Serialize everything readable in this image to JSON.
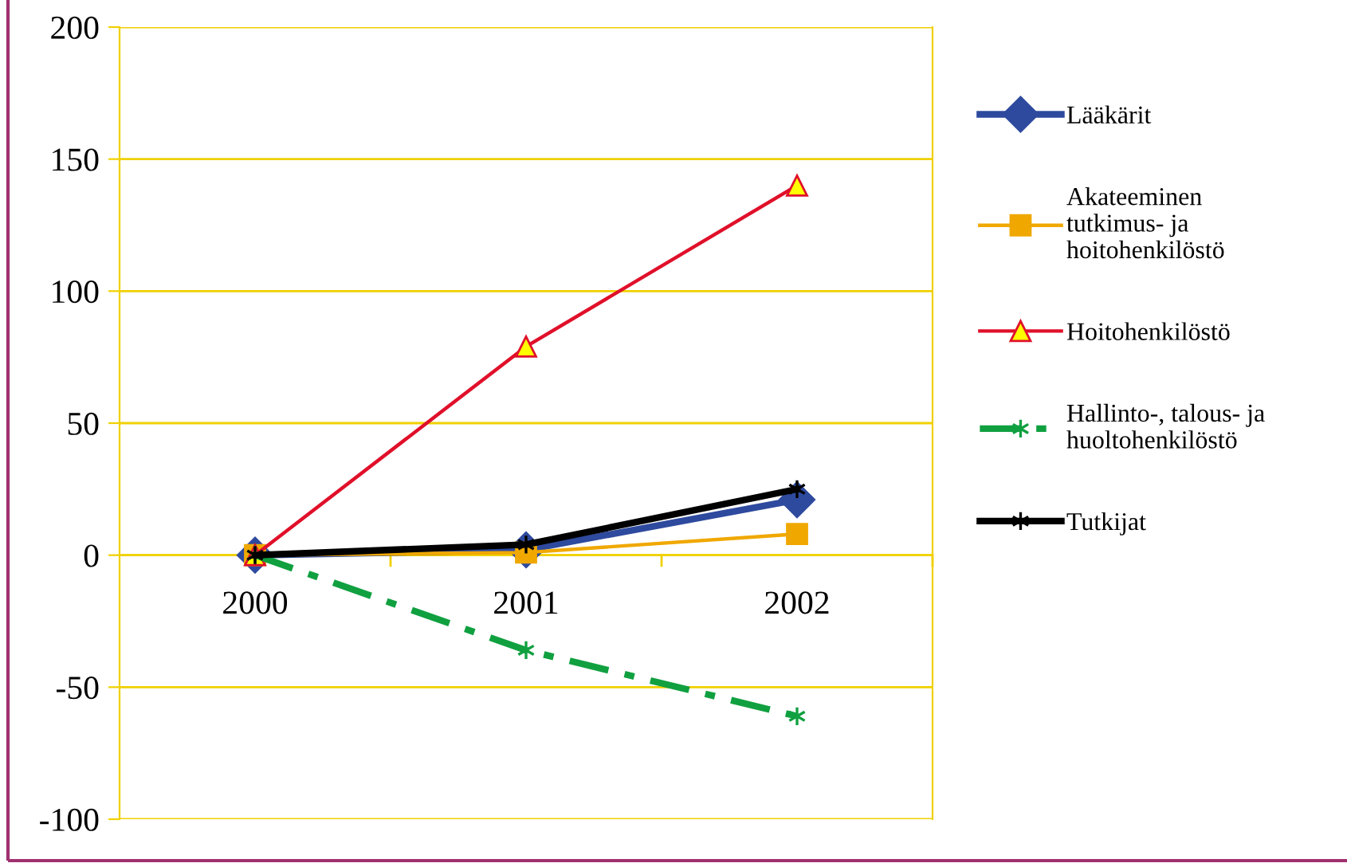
{
  "chart_data": {
    "type": "line",
    "categories": [
      "2000",
      "2001",
      "2002"
    ],
    "series": [
      {
        "name": "Lääkärit",
        "color": "#2e4a9e",
        "values": [
          0,
          2,
          21
        ],
        "marker": "diamond",
        "line_style": "solid"
      },
      {
        "name": "Akateeminen tutkimus- ja hoitohenkilöstö",
        "color": "#f0a800",
        "values": [
          0,
          1,
          8
        ],
        "marker": "square",
        "line_style": "solid"
      },
      {
        "name": "Hoitohenkilöstö",
        "color": "#e0102a",
        "values": [
          0,
          79,
          140
        ],
        "marker": "triangle",
        "line_style": "solid"
      },
      {
        "name": "Hallinto-, talous- ja huoltohenkilöstö",
        "color": "#10a040",
        "values": [
          0,
          -36,
          -61
        ],
        "marker": "cross",
        "line_style": "dashed"
      },
      {
        "name": "Tutkijat",
        "color": "#000000",
        "values": [
          0,
          4,
          25
        ],
        "marker": "cross",
        "line_style": "solid"
      }
    ],
    "ylim": [
      -100,
      200
    ],
    "yticks": [
      -100,
      -50,
      0,
      50,
      100,
      150,
      200
    ],
    "grid": "y",
    "legend": "right"
  }
}
